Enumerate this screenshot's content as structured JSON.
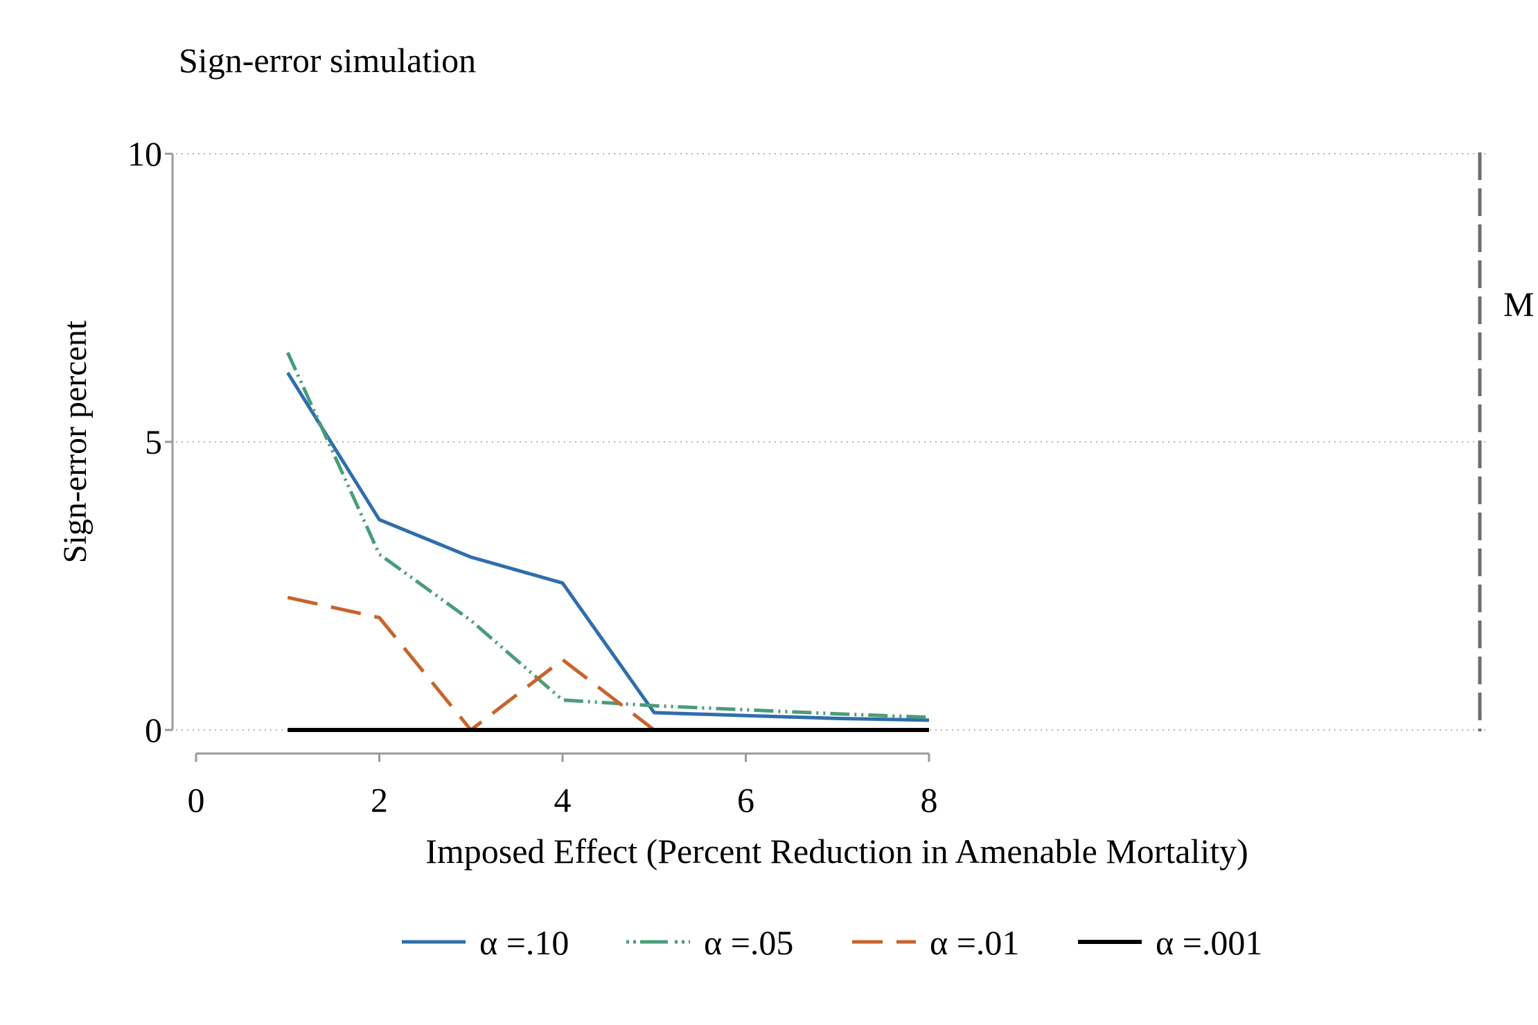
{
  "chart_data": {
    "type": "line",
    "title": "Sign-error simulation",
    "xlabel": "Imposed Effect (Percent Reduction in Amenable Mortality)",
    "ylabel": "Sign-error percent",
    "xlim": [
      0,
      8
    ],
    "ylim": [
      0,
      10
    ],
    "xticks": [
      0,
      2,
      4,
      6,
      8
    ],
    "yticks": [
      0,
      5,
      10
    ],
    "x_tick_labels": [
      "0",
      "2",
      "4",
      "6",
      "8"
    ],
    "y_tick_labels": [
      "0",
      "5",
      "10"
    ],
    "grid": "horizontal-dotted",
    "legend_position": "bottom",
    "reference_line": {
      "label": "M"
    },
    "x": [
      1,
      2,
      3,
      4,
      5,
      6,
      7,
      8
    ],
    "series": [
      {
        "name": "α =.10",
        "color": "#2f6eac",
        "style": "solid",
        "values": [
          6.2,
          3.65,
          3.0,
          2.55,
          0.3,
          0.25,
          0.2,
          0.17
        ]
      },
      {
        "name": "α =.05",
        "color": "#4b9c7a",
        "style": "dashdot",
        "values": [
          6.55,
          3.05,
          1.9,
          0.52,
          0.42,
          0.35,
          0.28,
          0.22
        ]
      },
      {
        "name": "α =.01",
        "color": "#c8642a",
        "style": "longdash",
        "values": [
          2.3,
          1.95,
          0.0,
          1.22,
          0.0,
          0.0,
          0.0,
          0.0
        ]
      },
      {
        "name": "α =.001",
        "color": "#000000",
        "style": "solid-thick",
        "values": [
          0,
          0,
          0,
          0,
          0,
          0,
          0,
          0
        ]
      }
    ]
  }
}
